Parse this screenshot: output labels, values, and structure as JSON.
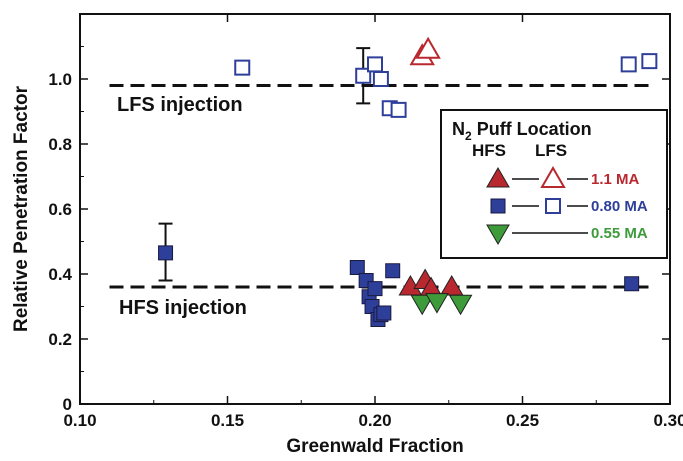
{
  "chart_data": {
    "type": "scatter",
    "xlabel": "Greenwald Fraction",
    "ylabel": "Relative Penetration Factor",
    "xlim": [
      0.1,
      0.3
    ],
    "ylim": [
      0,
      1.2
    ],
    "xticks": [
      "0.10",
      "0.15",
      "0.20",
      "0.25",
      "0.30"
    ],
    "yticks": [
      "0",
      "0.2",
      "0.4",
      "0.6",
      "0.8",
      "1.0"
    ],
    "grid": false,
    "reference_lines": [
      {
        "label": "LFS injection",
        "y": 0.98
      },
      {
        "label": "HFS injection",
        "y": 0.36
      }
    ],
    "legend": {
      "title_main": "N",
      "title_sub": "2",
      "title_rest": " Puff Location",
      "col_hfs": "HFS",
      "col_lfs": "LFS",
      "placement": "right",
      "entries": [
        {
          "label": "1.1 MA",
          "color": "#b8282e",
          "hfs_marker": "triangle-up-filled",
          "lfs_marker": "triangle-up-open"
        },
        {
          "label": "0.80 MA",
          "color": "#2e3f9a",
          "hfs_marker": "square-filled",
          "lfs_marker": "square-open"
        },
        {
          "label": "0.55 MA",
          "color": "#3d9b3a",
          "hfs_marker": "triangle-down-filled",
          "lfs_marker": "none"
        }
      ]
    },
    "series": [
      {
        "name": "1.1 MA",
        "color": "#b8282e",
        "hfs": [
          [
            0.212,
            0.36
          ],
          [
            0.217,
            0.38
          ],
          [
            0.219,
            0.355
          ],
          [
            0.226,
            0.36
          ]
        ],
        "lfs": [
          [
            0.216,
            1.07
          ],
          [
            0.218,
            1.09
          ]
        ]
      },
      {
        "name": "0.80 MA",
        "color": "#2e3f9a",
        "hfs": [
          [
            0.129,
            0.465
          ],
          [
            0.194,
            0.42
          ],
          [
            0.197,
            0.38
          ],
          [
            0.198,
            0.33
          ],
          [
            0.199,
            0.3
          ],
          [
            0.2,
            0.355
          ],
          [
            0.201,
            0.26
          ],
          [
            0.202,
            0.275
          ],
          [
            0.203,
            0.28
          ],
          [
            0.206,
            0.41
          ],
          [
            0.287,
            0.37
          ]
        ],
        "lfs": [
          [
            0.155,
            1.035
          ],
          [
            0.196,
            1.01
          ],
          [
            0.2,
            1.045
          ],
          [
            0.202,
            1.0
          ],
          [
            0.205,
            0.91
          ],
          [
            0.208,
            0.905
          ],
          [
            0.286,
            1.045
          ],
          [
            0.293,
            1.055
          ]
        ],
        "errorbars": [
          {
            "x": 0.129,
            "y": 0.465,
            "low": 0.38,
            "high": 0.555
          },
          {
            "x": 0.196,
            "y": 1.01,
            "low": 0.925,
            "high": 1.095
          }
        ]
      },
      {
        "name": "0.55 MA",
        "color": "#3d9b3a",
        "hfs": [
          [
            0.216,
            0.31
          ],
          [
            0.221,
            0.315
          ],
          [
            0.229,
            0.31
          ]
        ],
        "lfs": []
      }
    ]
  }
}
